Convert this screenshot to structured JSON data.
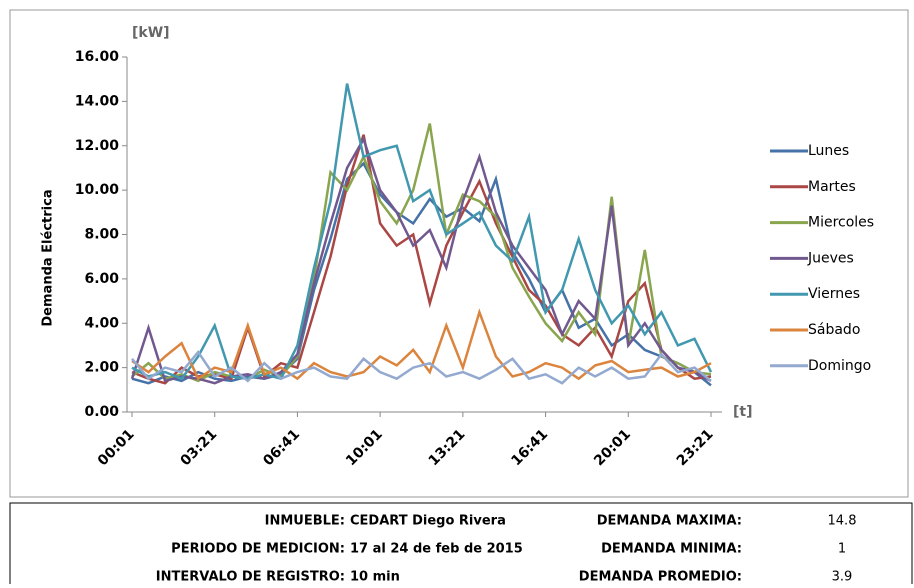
{
  "chart_data": {
    "type": "line",
    "y_unit": "[kW]",
    "x_unit": "[t]",
    "y_label": "Demanda Eléctrica",
    "categories": [
      "00:01",
      null,
      null,
      null,
      null,
      "03:21",
      null,
      null,
      null,
      null,
      "06:41",
      null,
      null,
      null,
      null,
      "10:01",
      null,
      null,
      null,
      null,
      "13:21",
      null,
      null,
      null,
      null,
      "16:41",
      null,
      null,
      null,
      null,
      "20:01",
      null,
      null,
      null,
      null,
      "23:21"
    ],
    "ylim": [
      0,
      16
    ],
    "yticks": [
      {
        "value": 0,
        "label": "0.00"
      },
      {
        "value": 2,
        "label": "2.00"
      },
      {
        "value": 4,
        "label": "4.00"
      },
      {
        "value": 6,
        "label": "6.00"
      },
      {
        "value": 8,
        "label": "8.00"
      },
      {
        "value": 10,
        "label": "10.00"
      },
      {
        "value": 12,
        "label": "12.00"
      },
      {
        "value": 14,
        "label": "14.00"
      },
      {
        "value": 16,
        "label": "16.00"
      }
    ],
    "series": [
      {
        "name": "Lunes",
        "color": "#4572a7",
        "values": [
          1.5,
          1.3,
          1.6,
          1.4,
          1.8,
          1.5,
          1.4,
          1.6,
          1.5,
          1.7,
          2.4,
          5.5,
          7.8,
          10.5,
          11.2,
          9.8,
          9.0,
          8.5,
          9.6,
          8.8,
          9.2,
          8.6,
          10.5,
          7.2,
          6.0,
          4.5,
          5.5,
          3.8,
          4.2,
          3.0,
          3.5,
          2.8,
          2.5,
          2.2,
          1.8,
          1.2
        ]
      },
      {
        "name": "Martes",
        "color": "#aa4643",
        "values": [
          1.8,
          1.5,
          1.3,
          2.0,
          1.6,
          1.7,
          1.5,
          3.8,
          1.6,
          2.2,
          2.0,
          4.5,
          7.0,
          10.2,
          12.5,
          8.5,
          7.5,
          8.0,
          4.9,
          7.5,
          9.0,
          10.4,
          8.5,
          7.0,
          5.5,
          4.8,
          3.5,
          3.0,
          3.8,
          2.5,
          5.0,
          5.8,
          2.8,
          2.0,
          1.5,
          1.6
        ]
      },
      {
        "name": "Miercoles",
        "color": "#89a54e",
        "values": [
          1.6,
          2.2,
          1.5,
          1.7,
          1.4,
          1.8,
          1.6,
          1.5,
          1.9,
          1.6,
          2.5,
          6.0,
          10.8,
          10.0,
          11.5,
          9.5,
          8.5,
          10.0,
          13.0,
          8.0,
          9.8,
          9.5,
          8.8,
          6.5,
          5.2,
          4.0,
          3.2,
          4.5,
          3.5,
          9.7,
          3.0,
          7.3,
          2.5,
          2.2,
          1.8,
          1.7
        ]
      },
      {
        "name": "Jueves",
        "color": "#71588f",
        "values": [
          1.5,
          3.8,
          1.4,
          1.6,
          1.5,
          1.3,
          1.6,
          1.7,
          1.5,
          1.8,
          2.6,
          5.8,
          8.5,
          11.0,
          12.3,
          10.0,
          9.0,
          7.5,
          8.2,
          6.5,
          9.5,
          11.5,
          9.0,
          7.5,
          6.5,
          5.5,
          3.5,
          5.0,
          4.2,
          9.3,
          3.0,
          4.0,
          2.8,
          2.0,
          1.8,
          1.4
        ]
      },
      {
        "name": "Viernes",
        "color": "#4198af",
        "values": [
          2.0,
          1.6,
          1.8,
          1.5,
          2.5,
          3.9,
          1.6,
          1.5,
          1.7,
          1.5,
          3.0,
          6.5,
          9.5,
          14.8,
          11.5,
          11.8,
          12.0,
          9.5,
          10.0,
          8.0,
          8.5,
          9.0,
          7.5,
          6.8,
          8.8,
          4.5,
          5.5,
          7.8,
          5.5,
          4.0,
          4.8,
          3.5,
          4.5,
          3.0,
          3.3,
          1.8
        ]
      },
      {
        "name": "Sábado",
        "color": "#db843d",
        "values": [
          2.3,
          1.8,
          2.5,
          3.1,
          1.5,
          2.0,
          1.8,
          3.9,
          1.7,
          2.0,
          1.5,
          2.2,
          1.8,
          1.6,
          1.8,
          2.5,
          2.1,
          2.8,
          1.8,
          3.9,
          2.0,
          4.5,
          2.5,
          1.6,
          1.8,
          2.2,
          2.0,
          1.5,
          2.1,
          2.3,
          1.8,
          1.9,
          2.0,
          1.6,
          1.8,
          2.2
        ]
      },
      {
        "name": "Domingo",
        "color": "#93a9cf",
        "values": [
          2.4,
          1.5,
          2.0,
          1.8,
          2.7,
          1.6,
          2.0,
          1.4,
          2.2,
          1.5,
          1.8,
          2.0,
          1.6,
          1.5,
          2.4,
          1.8,
          1.5,
          2.0,
          2.2,
          1.6,
          1.8,
          1.5,
          1.9,
          2.4,
          1.5,
          1.7,
          1.3,
          2.0,
          1.6,
          2.0,
          1.5,
          1.6,
          2.6,
          1.8,
          2.0,
          1.4
        ]
      }
    ]
  },
  "info_table": {
    "left": [
      {
        "label": "INMUEBLE:",
        "value": "CEDART Diego Rivera"
      },
      {
        "label": "PERIODO DE MEDICION:",
        "value": "17 al 24 de feb de 2015"
      },
      {
        "label": "INTERVALO DE REGISTRO:",
        "value": "10 min"
      }
    ],
    "right": [
      {
        "label": "DEMANDA MAXIMA:",
        "value": 14.8
      },
      {
        "label": "DEMANDA MINIMA:",
        "value": 1
      },
      {
        "label": "DEMANDA PROMEDIO:",
        "value": 3.9
      }
    ]
  }
}
